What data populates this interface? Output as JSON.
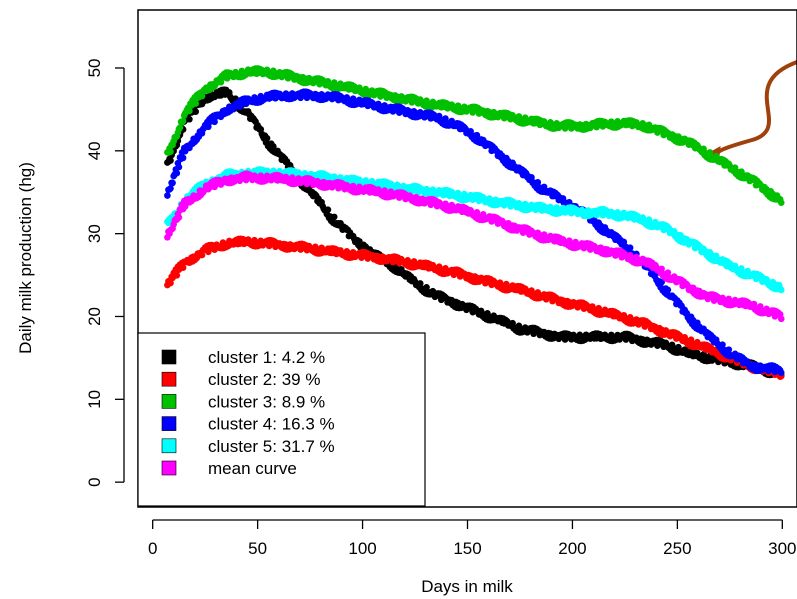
{
  "chart_data": {
    "type": "scatter",
    "title": "",
    "xlabel": "Days in milk",
    "ylabel": "Daily milk production (hg)",
    "xlim": [
      -7,
      307
    ],
    "ylim": [
      -3,
      57
    ],
    "xticks": [
      0,
      50,
      100,
      150,
      200,
      250,
      300
    ],
    "yticks": [
      0,
      10,
      20,
      30,
      40,
      50
    ],
    "grid": false,
    "legend_position": "bottom-left",
    "annotation": {
      "type": "curved-arrow",
      "color": "#a0410d",
      "target": {
        "x": 263,
        "y": 39.5
      }
    },
    "series": [
      {
        "name": "cluster 1: 4.2 %",
        "color": "#000000",
        "x": [
          7,
          15,
          25,
          35,
          45,
          55,
          65,
          75,
          85,
          95,
          105,
          115,
          125,
          135,
          145,
          155,
          165,
          175,
          185,
          195,
          205,
          215,
          225,
          235,
          245,
          255,
          265,
          275,
          285,
          299
        ],
        "y": [
          38.5,
          43.5,
          46.5,
          47,
          44.5,
          41,
          38,
          35,
          32,
          29.5,
          27.5,
          26,
          24,
          22.5,
          21.5,
          20.5,
          19.5,
          18.5,
          18,
          17.5,
          17.5,
          17.5,
          17.5,
          17,
          16.5,
          15.5,
          15,
          14.5,
          14,
          13
        ]
      },
      {
        "name": "cluster 2: 39 %",
        "color": "#ff0000",
        "x": [
          7,
          15,
          25,
          35,
          45,
          55,
          65,
          75,
          85,
          95,
          105,
          115,
          125,
          135,
          145,
          155,
          165,
          175,
          185,
          195,
          205,
          215,
          225,
          235,
          245,
          255,
          265,
          275,
          285,
          299
        ],
        "y": [
          24,
          26.5,
          28,
          28.8,
          29,
          28.8,
          28.5,
          28.2,
          27.8,
          27.5,
          27.2,
          26.8,
          26.3,
          25.8,
          25.2,
          24.5,
          23.8,
          23.2,
          22.5,
          21.8,
          21.2,
          20.5,
          19.8,
          19,
          18,
          17,
          16,
          15,
          14,
          13
        ]
      },
      {
        "name": "cluster 3: 8.9 %",
        "color": "#00c000",
        "x": [
          7,
          15,
          25,
          35,
          45,
          55,
          65,
          75,
          85,
          95,
          105,
          115,
          125,
          135,
          145,
          155,
          165,
          175,
          185,
          195,
          205,
          215,
          225,
          235,
          245,
          255,
          265,
          275,
          285,
          299
        ],
        "y": [
          39.5,
          44.5,
          47.5,
          49,
          49.5,
          49.5,
          49,
          48.5,
          48,
          47.5,
          47,
          46.5,
          46,
          45.5,
          45.2,
          44.8,
          44.3,
          43.8,
          43.3,
          43,
          43,
          43.2,
          43.3,
          43,
          42,
          41,
          39.5,
          38,
          36.5,
          34
        ]
      },
      {
        "name": "cluster 4: 16.3 %",
        "color": "#0000ff",
        "x": [
          7,
          15,
          25,
          35,
          45,
          55,
          65,
          75,
          85,
          95,
          105,
          115,
          125,
          135,
          145,
          155,
          165,
          175,
          185,
          195,
          205,
          215,
          225,
          235,
          245,
          255,
          265,
          275,
          285,
          299
        ],
        "y": [
          35,
          40,
          43,
          45,
          46,
          46.5,
          46.7,
          46.7,
          46.5,
          46,
          45.5,
          45,
          44.5,
          44,
          43,
          41.5,
          39.5,
          37.5,
          35.5,
          34,
          32.5,
          30.5,
          28.5,
          26,
          23,
          20,
          17.5,
          15.5,
          14,
          13.5
        ]
      },
      {
        "name": "cluster 5: 31.7 %",
        "color": "#00ffff",
        "x": [
          7,
          15,
          25,
          35,
          45,
          55,
          65,
          75,
          85,
          95,
          105,
          115,
          125,
          135,
          145,
          155,
          165,
          175,
          185,
          195,
          205,
          215,
          225,
          235,
          245,
          255,
          265,
          275,
          285,
          299
        ],
        "y": [
          31,
          34,
          36,
          37,
          37.3,
          37.3,
          37.2,
          37,
          36.7,
          36.3,
          36,
          35.7,
          35.3,
          35,
          34.6,
          34.2,
          33.8,
          33.4,
          33,
          32.8,
          32.6,
          32.5,
          32.2,
          31.5,
          30.5,
          29,
          27.5,
          26,
          25,
          23.5
        ]
      },
      {
        "name": "mean curve",
        "color": "#ff00ff",
        "x": [
          7,
          15,
          25,
          35,
          45,
          55,
          65,
          75,
          85,
          95,
          105,
          115,
          125,
          135,
          145,
          155,
          165,
          175,
          185,
          195,
          205,
          215,
          225,
          235,
          245,
          255,
          265,
          275,
          285,
          299
        ],
        "y": [
          30,
          33.5,
          35.5,
          36.5,
          36.8,
          36.7,
          36.5,
          36.2,
          35.9,
          35.5,
          35.1,
          34.7,
          34.2,
          33.6,
          33,
          32.2,
          31.4,
          30.5,
          29.7,
          29,
          28.5,
          28,
          27.3,
          26.5,
          25,
          23.5,
          22.3,
          21.8,
          21.3,
          20
        ]
      }
    ]
  }
}
